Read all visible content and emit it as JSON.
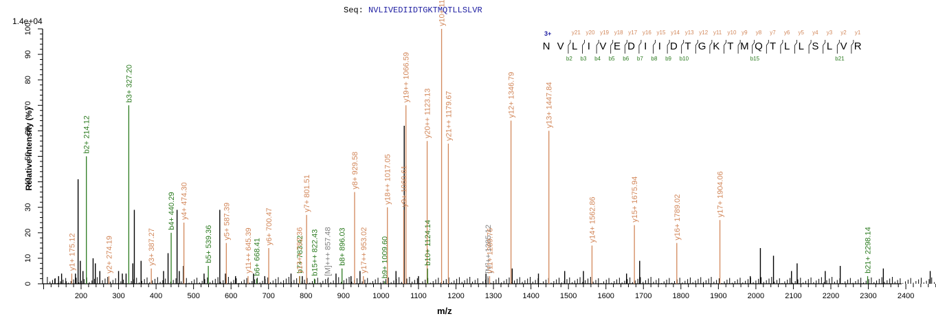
{
  "header": {
    "seq_label": "Seq:",
    "sequence": "NVLIVEDIIDTGKTMQTLLSLVR",
    "intensity_scale": "1.4e+04"
  },
  "colors": {
    "y_ion": "#d2875a",
    "b_ion": "#2a7a1e",
    "precursor": "#808080",
    "unassigned": "#000000",
    "seq_blue": "#1c1ca0"
  },
  "fragment_map": {
    "charge": "3+",
    "residues": [
      "N",
      "V",
      "L",
      "I",
      "V",
      "E",
      "D",
      "I",
      "I",
      "D",
      "T",
      "G",
      "K",
      "T",
      "M",
      "Q",
      "T",
      "L",
      "L",
      "S",
      "L",
      "V",
      "R"
    ],
    "y_labels": [
      "y21",
      "y20",
      "y19",
      "y18",
      "y17",
      "y16",
      "y15",
      "y14",
      "y13",
      "y12",
      "y11",
      "y10",
      "y9",
      "y8",
      "y7",
      "y6",
      "y5",
      "y4",
      "y3",
      "y2",
      "y1"
    ],
    "b_labels": [
      "b2",
      "b3",
      "b4",
      "b5",
      "b6",
      "b7",
      "b8",
      "b9",
      "b10",
      "b15",
      "b21"
    ],
    "b_positions": [
      2,
      3,
      4,
      5,
      6,
      7,
      8,
      9,
      10,
      15,
      21
    ]
  },
  "chart_data": {
    "type": "bar",
    "title": "Seq: NVLIVEDIIDTGKTMQTLLSLVR",
    "xlabel": "m/z",
    "ylabel": "Relative   Intensity (%)",
    "xlim": [
      100,
      2500
    ],
    "ylim": [
      0,
      100
    ],
    "xticks": [
      200,
      300,
      400,
      500,
      600,
      700,
      800,
      900,
      1000,
      1100,
      1200,
      1300,
      1400,
      1500,
      1600,
      1700,
      1800,
      1900,
      2000,
      2100,
      2200,
      2300,
      2400
    ],
    "yticks": [
      0,
      10,
      20,
      30,
      40,
      50,
      60,
      70,
      80,
      90,
      100
    ],
    "intensity_scale": "1.4e+04",
    "annotated_peaks": [
      {
        "label": "y1+ 175.12",
        "mz": 175.12,
        "intensity": 4,
        "type": "y"
      },
      {
        "label": "b2+ 214.12",
        "mz": 214.12,
        "intensity": 50,
        "type": "b"
      },
      {
        "label": "y2+ 274.19",
        "mz": 274.19,
        "intensity": 3,
        "type": "y"
      },
      {
        "label": "b3+ 327.20",
        "mz": 327.2,
        "intensity": 70,
        "type": "b"
      },
      {
        "label": "y3+ 387.27",
        "mz": 387.27,
        "intensity": 6,
        "type": "y"
      },
      {
        "label": "b4+ 440.29",
        "mz": 440.29,
        "intensity": 20,
        "type": "b"
      },
      {
        "label": "y4+ 474.30",
        "mz": 474.3,
        "intensity": 24,
        "type": "y"
      },
      {
        "label": "b5+ 539.36",
        "mz": 539.36,
        "intensity": 7,
        "type": "b"
      },
      {
        "label": "y5+ 587.39",
        "mz": 587.39,
        "intensity": 16,
        "type": "y"
      },
      {
        "label": "y11++ 645.39",
        "mz": 645.39,
        "intensity": 3,
        "type": "y"
      },
      {
        "label": "b6+ 668.41",
        "mz": 668.41,
        "intensity": 2,
        "type": "b"
      },
      {
        "label": "y6+ 700.47",
        "mz": 700.47,
        "intensity": 14,
        "type": "y"
      },
      {
        "label": "b7+ 783.42",
        "mz": 783.42,
        "intensity": 3,
        "type": "b"
      },
      {
        "label": "y13++ 782.36",
        "mz": 782.36,
        "intensity": 3,
        "type": "y"
      },
      {
        "label": "y7+ 801.51",
        "mz": 801.51,
        "intensity": 27,
        "type": "y"
      },
      {
        "label": "b15++ 822.43",
        "mz": 822.43,
        "intensity": 2,
        "type": "b"
      },
      {
        "label": "[M]+++ 857.48",
        "mz": 857.48,
        "intensity": 2,
        "type": "precursor"
      },
      {
        "label": "b8+ 896.03",
        "mz": 896.03,
        "intensity": 6,
        "type": "b"
      },
      {
        "label": "y8+ 929.58",
        "mz": 929.58,
        "intensity": 36,
        "type": "y"
      },
      {
        "label": "y17++ 953.02",
        "mz": 953.02,
        "intensity": 3,
        "type": "y"
      },
      {
        "label": "b9+ 1009.60",
        "mz": 1009.6,
        "intensity": 1,
        "type": "b"
      },
      {
        "label": "y18++ 1017.05",
        "mz": 1017.05,
        "intensity": 30,
        "type": "y"
      },
      {
        "label": "y9+ 1060.61",
        "mz": 1060.61,
        "intensity": 29,
        "type": "y"
      },
      {
        "label": "y19++ 1066.59",
        "mz": 1066.59,
        "intensity": 70,
        "type": "y"
      },
      {
        "label": "y20++ 1123.13",
        "mz": 1123.13,
        "intensity": 56,
        "type": "y"
      },
      {
        "label": "b10+ 1124.14",
        "mz": 1124.14,
        "intensity": 6,
        "type": "b"
      },
      {
        "label": "y10+ 1161.65",
        "mz": 1161.65,
        "intensity": 100,
        "type": "y"
      },
      {
        "label": "y21++ 1179.67",
        "mz": 1179.67,
        "intensity": 55,
        "type": "y"
      },
      {
        "label": "[M]++ 1285.12",
        "mz": 1285.12,
        "intensity": 3,
        "type": "precursor"
      },
      {
        "label": "y11+ 1289.76",
        "mz": 1289.76,
        "intensity": 3,
        "type": "y"
      },
      {
        "label": "y12+ 1346.79",
        "mz": 1346.79,
        "intensity": 64,
        "type": "y"
      },
      {
        "label": "y13+ 1447.84",
        "mz": 1447.84,
        "intensity": 60,
        "type": "y"
      },
      {
        "label": "y14+ 1562.86",
        "mz": 1562.86,
        "intensity": 15,
        "type": "y"
      },
      {
        "label": "y15+ 1675.94",
        "mz": 1675.94,
        "intensity": 23,
        "type": "y"
      },
      {
        "label": "y16+ 1789.02",
        "mz": 1789.02,
        "intensity": 16,
        "type": "y"
      },
      {
        "label": "y17+ 1904.06",
        "mz": 1904.06,
        "intensity": 25,
        "type": "y"
      },
      {
        "label": "b21+ 2298.14",
        "mz": 2298.14,
        "intensity": 3,
        "type": "b"
      }
    ],
    "unassigned_peaks": [
      {
        "mz": 130,
        "intensity": 2
      },
      {
        "mz": 140,
        "intensity": 3
      },
      {
        "mz": 148,
        "intensity": 4
      },
      {
        "mz": 160,
        "intensity": 1
      },
      {
        "mz": 185,
        "intensity": 4
      },
      {
        "mz": 192,
        "intensity": 41
      },
      {
        "mz": 198,
        "intensity": 9
      },
      {
        "mz": 205,
        "intensity": 5
      },
      {
        "mz": 232,
        "intensity": 10
      },
      {
        "mz": 238,
        "intensity": 8
      },
      {
        "mz": 250,
        "intensity": 5
      },
      {
        "mz": 300,
        "intensity": 5
      },
      {
        "mz": 310,
        "intensity": 4
      },
      {
        "mz": 320,
        "intensity": 4
      },
      {
        "mz": 342,
        "intensity": 29
      },
      {
        "mz": 338,
        "intensity": 8
      },
      {
        "mz": 360,
        "intensity": 9
      },
      {
        "mz": 420,
        "intensity": 5
      },
      {
        "mz": 432,
        "intensity": 12
      },
      {
        "mz": 456,
        "intensity": 29
      },
      {
        "mz": 462,
        "intensity": 5
      },
      {
        "mz": 473,
        "intensity": 7
      },
      {
        "mz": 528,
        "intensity": 4
      },
      {
        "mz": 570,
        "intensity": 29
      },
      {
        "mz": 585,
        "intensity": 4
      },
      {
        "mz": 612,
        "intensity": 3
      },
      {
        "mz": 660,
        "intensity": 4
      },
      {
        "mz": 690,
        "intensity": 3
      },
      {
        "mz": 760,
        "intensity": 4
      },
      {
        "mz": 790,
        "intensity": 3
      },
      {
        "mz": 880,
        "intensity": 4
      },
      {
        "mz": 920,
        "intensity": 3
      },
      {
        "mz": 944,
        "intensity": 5
      },
      {
        "mz": 1040,
        "intensity": 5
      },
      {
        "mz": 1062,
        "intensity": 62
      },
      {
        "mz": 1100,
        "intensity": 3
      },
      {
        "mz": 1280,
        "intensity": 4
      },
      {
        "mz": 1350,
        "intensity": 6
      },
      {
        "mz": 1420,
        "intensity": 4
      },
      {
        "mz": 1490,
        "intensity": 5
      },
      {
        "mz": 1540,
        "intensity": 5
      },
      {
        "mz": 1655,
        "intensity": 4
      },
      {
        "mz": 1690,
        "intensity": 9
      },
      {
        "mz": 1985,
        "intensity": 3
      },
      {
        "mz": 2012,
        "intensity": 14
      },
      {
        "mz": 2047,
        "intensity": 11
      },
      {
        "mz": 2095,
        "intensity": 5
      },
      {
        "mz": 2110,
        "intensity": 8
      },
      {
        "mz": 2185,
        "intensity": 5
      },
      {
        "mz": 2225,
        "intensity": 7
      },
      {
        "mz": 2340,
        "intensity": 6
      },
      {
        "mz": 2465,
        "intensity": 5
      }
    ]
  }
}
